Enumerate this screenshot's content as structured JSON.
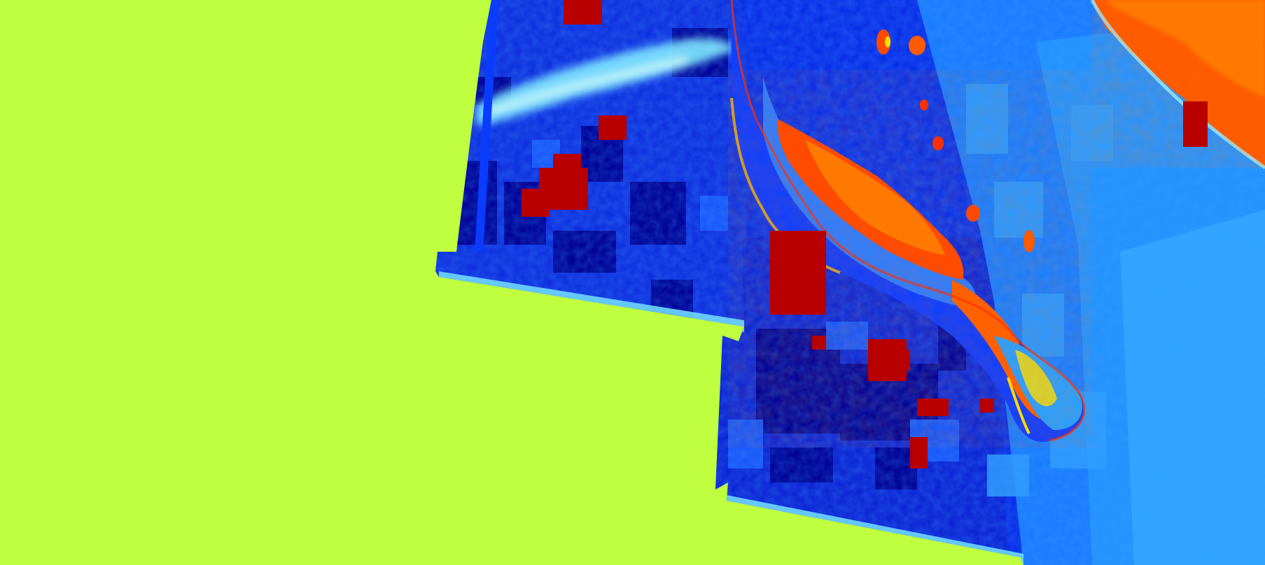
{
  "map": {
    "type": "false-color satellite raster",
    "colormap": "jet",
    "colors": {
      "nodata_fill": "#bfff40",
      "low": "#00008f",
      "deep_blue": "#0000d8",
      "blue": "#0a3cff",
      "light_blue": "#1a8cff",
      "cyan": "#40d0ff",
      "pale_cyan": "#9ff0ff",
      "yellow": "#ffe000",
      "orange": "#ff7a00",
      "red_orange": "#ff3d00",
      "dark_red": "#b80000"
    },
    "features": [
      "swath-left",
      "swath-center",
      "swath-right",
      "peninsula",
      "mainland-coast",
      "cloud-streak",
      "dark-red-patches",
      "islands"
    ]
  }
}
